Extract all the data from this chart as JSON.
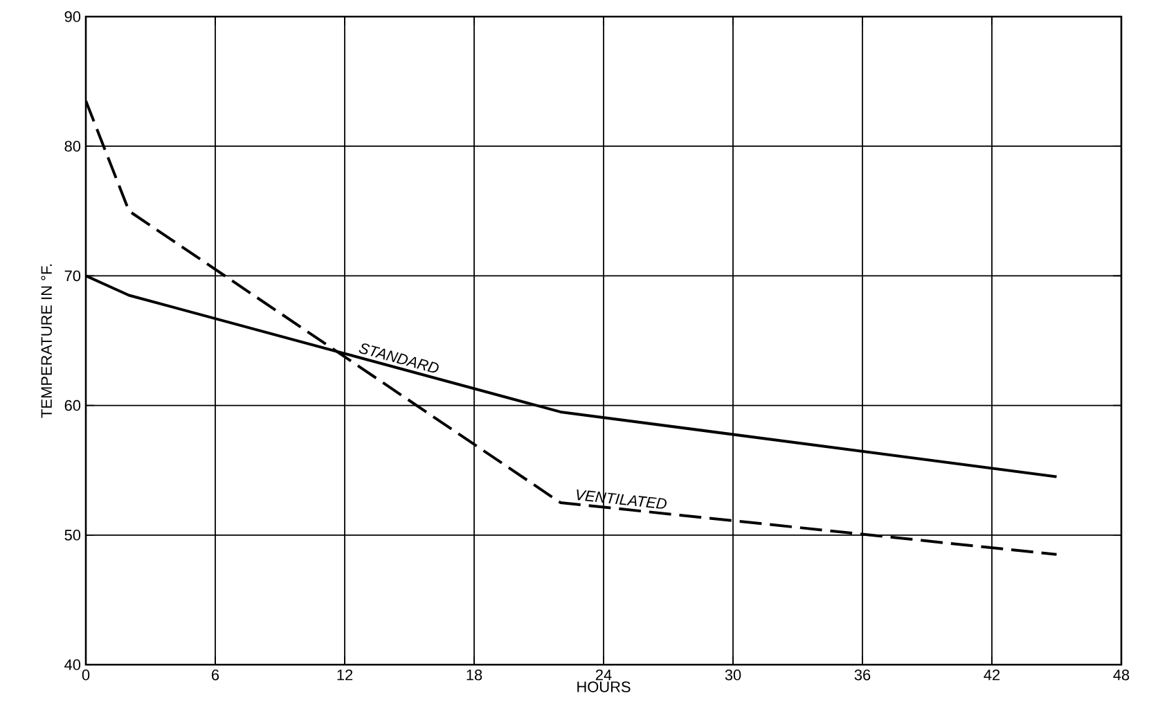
{
  "chart_data": {
    "type": "line",
    "xlabel": "HOURS",
    "ylabel": "TEMPERATURE IN °F.",
    "xlim": [
      0,
      48
    ],
    "ylim": [
      40,
      90
    ],
    "xticks": [
      0,
      6,
      12,
      18,
      24,
      30,
      36,
      42,
      48
    ],
    "yticks": [
      40,
      50,
      60,
      70,
      80,
      90
    ],
    "grid": true,
    "marker": "none",
    "series": [
      {
        "name": "STANDARD",
        "color": "#000000",
        "line_style": "solid",
        "x": [
          0,
          2,
          22,
          45
        ],
        "values": [
          70,
          68.5,
          59.5,
          54.5
        ]
      },
      {
        "name": "VENTILATED",
        "color": "#000000",
        "line_style": "dashed",
        "x": [
          0,
          2,
          22,
          45
        ],
        "values": [
          83.5,
          75,
          52.5,
          48.5
        ]
      }
    ]
  }
}
